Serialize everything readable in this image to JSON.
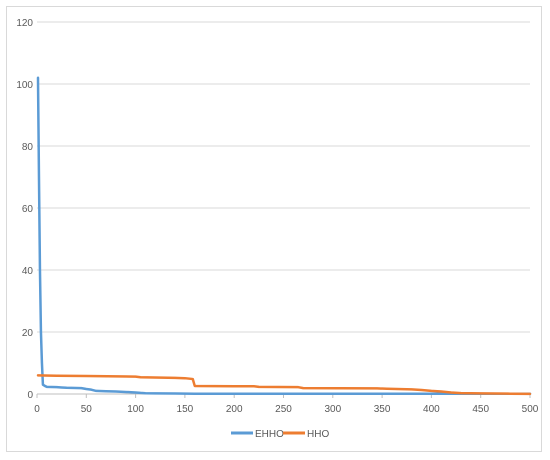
{
  "chart_data": {
    "type": "line",
    "title": "",
    "xlabel": "",
    "ylabel": "",
    "xlim": [
      0,
      500
    ],
    "ylim": [
      0,
      120
    ],
    "x_ticks": [
      0,
      50,
      100,
      150,
      200,
      250,
      300,
      350,
      400,
      450,
      500
    ],
    "y_ticks": [
      0,
      20,
      40,
      60,
      80,
      100,
      120
    ],
    "grid": "horizontal",
    "legend_position": "bottom",
    "series": [
      {
        "name": "EHHO",
        "color": "#5B9BD5",
        "x": [
          1,
          2,
          3,
          4,
          5,
          6,
          8,
          10,
          20,
          25,
          30,
          45,
          50,
          55,
          60,
          70,
          80,
          100,
          105,
          110,
          120,
          140,
          160,
          200,
          250,
          300,
          350,
          400,
          450,
          500
        ],
        "y": [
          102,
          70,
          40,
          20,
          10,
          3,
          2.6,
          2.3,
          2.2,
          2.1,
          2.0,
          1.9,
          1.6,
          1.4,
          1.0,
          0.9,
          0.8,
          0.5,
          0.35,
          0.25,
          0.2,
          0.15,
          0.1,
          0.1,
          0.1,
          0.1,
          0.1,
          0.1,
          0.1,
          0.1
        ]
      },
      {
        "name": "HHO",
        "color": "#ED7D31",
        "x": [
          1,
          20,
          50,
          100,
          105,
          140,
          150,
          156,
          158,
          160,
          200,
          220,
          225,
          265,
          270,
          345,
          355,
          380,
          390,
          400,
          410,
          420,
          430,
          450,
          480,
          500
        ],
        "y": [
          6.0,
          5.9,
          5.8,
          5.6,
          5.4,
          5.2,
          5.1,
          4.9,
          4.8,
          2.6,
          2.5,
          2.5,
          2.3,
          2.2,
          1.9,
          1.8,
          1.7,
          1.5,
          1.3,
          1.0,
          0.8,
          0.5,
          0.3,
          0.2,
          0.1,
          0.05
        ]
      }
    ]
  }
}
